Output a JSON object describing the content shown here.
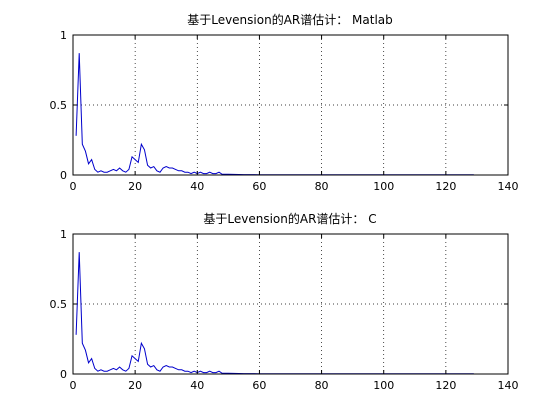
{
  "figure": {
    "background": "#ffffff",
    "line_color": "#0000cc"
  },
  "chart_data": [
    {
      "type": "line",
      "title": "基于Levension的AR谱估计： Matlab",
      "xlabel": "",
      "ylabel": "",
      "xlim": [
        0,
        140
      ],
      "ylim": [
        0,
        1
      ],
      "xticks": [
        0,
        20,
        40,
        60,
        80,
        100,
        120,
        140
      ],
      "yticks": [
        0,
        0.5,
        1
      ],
      "grid": true,
      "series": [
        {
          "x": [
            1,
            2,
            3,
            4,
            5,
            6,
            7,
            8,
            9,
            10,
            11,
            12,
            13,
            14,
            15,
            16,
            17,
            18,
            19,
            20,
            21,
            22,
            23,
            24,
            25,
            26,
            27,
            28,
            29,
            30,
            31,
            32,
            33,
            34,
            35,
            36,
            37,
            38,
            39,
            40,
            41,
            42,
            43,
            44,
            45,
            46,
            47,
            48,
            50,
            55,
            60,
            70,
            80,
            90,
            100,
            110,
            120,
            129
          ],
          "y": [
            0.28,
            0.87,
            0.22,
            0.17,
            0.08,
            0.11,
            0.04,
            0.02,
            0.03,
            0.02,
            0.02,
            0.03,
            0.04,
            0.03,
            0.05,
            0.03,
            0.02,
            0.04,
            0.13,
            0.11,
            0.09,
            0.22,
            0.18,
            0.07,
            0.05,
            0.06,
            0.03,
            0.02,
            0.05,
            0.06,
            0.05,
            0.05,
            0.04,
            0.03,
            0.03,
            0.02,
            0.02,
            0.01,
            0.02,
            0.01,
            0.02,
            0.01,
            0.01,
            0.02,
            0.01,
            0.01,
            0.02,
            0.005,
            0.005,
            0.003,
            0.002,
            0.002,
            0.002,
            0.002,
            0.002,
            0.002,
            0.002,
            0.002
          ]
        }
      ]
    },
    {
      "type": "line",
      "title": "基于Levension的AR谱估计： C",
      "xlabel": "",
      "ylabel": "",
      "xlim": [
        0,
        140
      ],
      "ylim": [
        0,
        1
      ],
      "xticks": [
        0,
        20,
        40,
        60,
        80,
        100,
        120,
        140
      ],
      "yticks": [
        0,
        0.5,
        1
      ],
      "grid": true,
      "series": [
        {
          "x": [
            1,
            2,
            3,
            4,
            5,
            6,
            7,
            8,
            9,
            10,
            11,
            12,
            13,
            14,
            15,
            16,
            17,
            18,
            19,
            20,
            21,
            22,
            23,
            24,
            25,
            26,
            27,
            28,
            29,
            30,
            31,
            32,
            33,
            34,
            35,
            36,
            37,
            38,
            39,
            40,
            41,
            42,
            43,
            44,
            45,
            46,
            47,
            48,
            50,
            55,
            60,
            70,
            80,
            90,
            100,
            110,
            120,
            129
          ],
          "y": [
            0.28,
            0.87,
            0.22,
            0.17,
            0.08,
            0.11,
            0.04,
            0.02,
            0.03,
            0.02,
            0.02,
            0.03,
            0.04,
            0.03,
            0.05,
            0.03,
            0.02,
            0.04,
            0.13,
            0.11,
            0.09,
            0.22,
            0.18,
            0.07,
            0.05,
            0.06,
            0.03,
            0.02,
            0.05,
            0.06,
            0.05,
            0.05,
            0.04,
            0.03,
            0.03,
            0.02,
            0.02,
            0.01,
            0.02,
            0.01,
            0.02,
            0.01,
            0.01,
            0.02,
            0.01,
            0.01,
            0.02,
            0.005,
            0.005,
            0.003,
            0.002,
            0.002,
            0.002,
            0.002,
            0.002,
            0.002,
            0.002,
            0.002
          ]
        }
      ]
    }
  ]
}
